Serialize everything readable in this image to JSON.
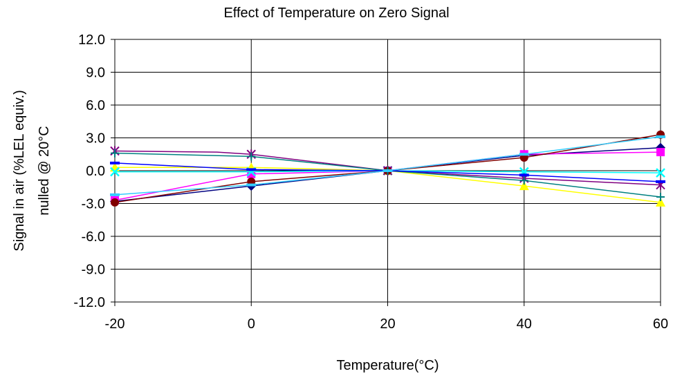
{
  "chart_data": {
    "type": "line",
    "title": "Effect of Temperature on Zero Signal",
    "xlabel": "Temperature(°C)",
    "ylabel_line1": "Signal in air (%LEL equiv.)",
    "ylabel_line2": "nulled @ 20°C",
    "x": [
      -20,
      0,
      20,
      40,
      60
    ],
    "xlim": [
      -20,
      60
    ],
    "ylim": [
      -12,
      12
    ],
    "x_ticks": [
      "-20",
      "0",
      "20",
      "40",
      "60"
    ],
    "y_ticks": [
      "12.0",
      "9.0",
      "6.0",
      "3.0",
      "0.0",
      "-3.0",
      "-6.0",
      "-9.0",
      "-12.0"
    ],
    "grid": true,
    "series": [
      {
        "color": "#000080",
        "marker": "diamond",
        "points": [
          [
            -20,
            -2.8
          ],
          [
            0,
            -1.4
          ],
          [
            20,
            0
          ],
          [
            40,
            1.4
          ],
          [
            60,
            2.1
          ]
        ]
      },
      {
        "color": "#ff00ff",
        "marker": "square",
        "points": [
          [
            -20,
            -2.7
          ],
          [
            0,
            -0.3
          ],
          [
            20,
            0
          ],
          [
            40,
            1.5
          ],
          [
            60,
            1.7
          ]
        ]
      },
      {
        "color": "#ffff00",
        "marker": "triangle",
        "points": [
          [
            -20,
            0.3
          ],
          [
            0,
            0.3
          ],
          [
            20,
            0
          ],
          [
            40,
            -1.4
          ],
          [
            60,
            -2.9
          ]
        ]
      },
      {
        "color": "#00ffff",
        "marker": "x",
        "points": [
          [
            -20,
            -0.1
          ],
          [
            0,
            -0.1
          ],
          [
            20,
            0
          ],
          [
            40,
            -0.1
          ],
          [
            60,
            -0.2
          ]
        ]
      },
      {
        "color": "#800080",
        "marker": "asterisk",
        "points": [
          [
            -20,
            1.8
          ],
          [
            -5,
            1.7
          ],
          [
            0,
            1.5
          ],
          [
            20,
            0
          ],
          [
            40,
            -0.7
          ],
          [
            60,
            -1.3
          ]
        ]
      },
      {
        "color": "#800000",
        "marker": "circle",
        "points": [
          [
            -20,
            -2.9
          ],
          [
            0,
            -1.0
          ],
          [
            20,
            0
          ],
          [
            40,
            1.2
          ],
          [
            60,
            3.3
          ]
        ]
      },
      {
        "color": "#008080",
        "marker": "plus",
        "points": [
          [
            -20,
            1.6
          ],
          [
            0,
            1.3
          ],
          [
            20,
            0
          ],
          [
            40,
            -0.9
          ],
          [
            60,
            -2.4
          ]
        ]
      },
      {
        "color": "#0000ff",
        "marker": "dash",
        "points": [
          [
            -20,
            0.7
          ],
          [
            0,
            0.1
          ],
          [
            20,
            0
          ],
          [
            40,
            -0.4
          ],
          [
            60,
            -1.0
          ]
        ]
      },
      {
        "color": "#33ccff",
        "marker": "dash",
        "points": [
          [
            -20,
            -2.2
          ],
          [
            0,
            -1.3
          ],
          [
            20,
            0
          ],
          [
            40,
            1.5
          ],
          [
            60,
            3.1
          ]
        ]
      }
    ]
  }
}
